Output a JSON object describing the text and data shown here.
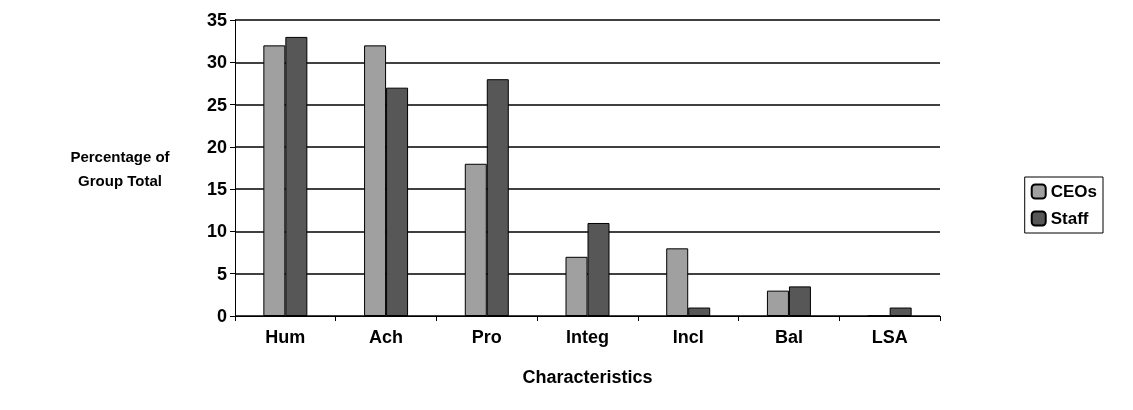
{
  "chart_data": {
    "type": "bar",
    "xlabel": "Characteristics",
    "ylabel": "Percentage of\nGroup Total",
    "categories": [
      "Hum",
      "Ach",
      "Pro",
      "Integ",
      "Incl",
      "Bal",
      "LSA"
    ],
    "series": [
      {
        "name": "CEOs",
        "color": "#a0a0a0",
        "values": [
          32,
          32,
          18,
          7,
          8,
          3,
          0
        ]
      },
      {
        "name": "Staff",
        "color": "#575757",
        "values": [
          33,
          27,
          28,
          11,
          1,
          3.5,
          1
        ]
      }
    ],
    "ylim": [
      0,
      35
    ],
    "yticks": [
      0,
      5,
      10,
      15,
      20,
      25,
      30,
      35
    ],
    "grid": "y",
    "legend": "right"
  }
}
